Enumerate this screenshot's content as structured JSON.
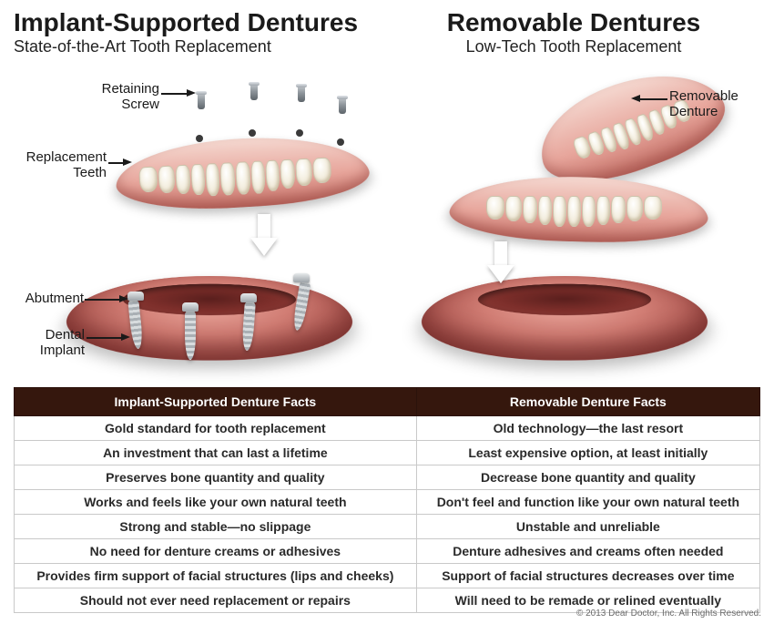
{
  "left": {
    "title": "Implant-Supported Dentures",
    "subtitle": "State-of-the-Art Tooth Replacement",
    "labels": {
      "retaining_screw": "Retaining\nScrew",
      "replacement_teeth": "Replacement\nTeeth",
      "abutment": "Abutment",
      "dental_implant": "Dental\nImplant"
    }
  },
  "right": {
    "title": "Removable Dentures",
    "subtitle": "Low-Tech Tooth Replacement",
    "labels": {
      "removable_denture": "Removable\nDenture"
    }
  },
  "table": {
    "header_bg": "#35170d",
    "headers": [
      "Implant-Supported Denture Facts",
      "Removable Denture Facts"
    ],
    "rows": [
      [
        "Gold standard for tooth replacement",
        "Old technology—the last resort"
      ],
      [
        "An investment that can last a lifetime",
        "Least expensive option, at least initially"
      ],
      [
        "Preserves bone quantity and quality",
        "Decrease bone quantity and quality"
      ],
      [
        "Works and feels like your own natural teeth",
        "Don't feel and function like your own natural teeth"
      ],
      [
        "Strong and stable—no slippage",
        "Unstable and unreliable"
      ],
      [
        "No need for denture creams or adhesives",
        "Denture adhesives and creams often needed"
      ],
      [
        "Provides firm support of facial structures (lips and cheeks)",
        "Support of facial structures decreases over time"
      ],
      [
        "Should not ever need replacement or repairs",
        "Will need to be remade or relined eventually"
      ]
    ]
  },
  "colors": {
    "gum_light": "#e7a59b",
    "gum_dark": "#a24b46",
    "tooth": "#f6f2e6",
    "metal": "#9da3a8",
    "text": "#1a1a1a"
  },
  "copyright": "© 2013 Dear Doctor, Inc. All Rights Reserved."
}
